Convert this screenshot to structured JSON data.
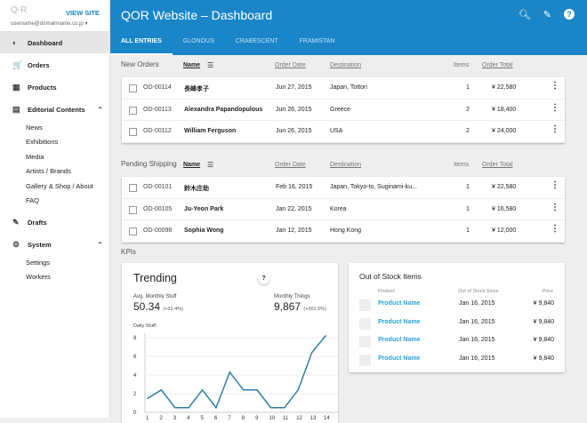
{
  "sidebar": {
    "logo": "Q·R",
    "view_site": "VIEW SITE",
    "user": "username@domainname.co.jp",
    "items": [
      {
        "label": "Dashboard",
        "icon": "dashboard-icon"
      },
      {
        "label": "Orders",
        "icon": "cart-icon"
      },
      {
        "label": "Products",
        "icon": "grid-icon"
      },
      {
        "label": "Editorial Contents",
        "icon": "book-icon"
      },
      {
        "label": "Drafts",
        "icon": "pencil-icon"
      },
      {
        "label": "System",
        "icon": "gear-icon"
      }
    ],
    "editorial": [
      "News",
      "Exhibitions",
      "Media",
      "Artists / Brands",
      "Gallery & Shop / About",
      "FAQ"
    ],
    "system": [
      "Settings",
      "Workers"
    ]
  },
  "header": {
    "title": "QOR Website – Dashboard",
    "tabs": [
      "ALL ENTRIES",
      "GLONOUS",
      "CRABESCENT",
      "FRAMISTAN"
    ],
    "accent": "#1a86c8"
  },
  "columns": {
    "name": "Name",
    "date": "Order Date",
    "dest": "Destination",
    "items": "Items",
    "total": "Order Total"
  },
  "new_orders": {
    "title": "New Orders",
    "rows": [
      {
        "id": "OD-00114",
        "name": "長峰孝子",
        "date": "Jun 27, 2015",
        "dest": "Japan, Tottori",
        "items": "1",
        "total": "¥ 22,580"
      },
      {
        "id": "OD-00113",
        "name": "Alexandra Papandopulous",
        "date": "Jun 26, 2015",
        "dest": "Greece",
        "items": "2",
        "total": "¥ 18,400"
      },
      {
        "id": "OD-00112",
        "name": "William Ferguson",
        "date": "Jun 26, 2015",
        "dest": "USA",
        "items": "2",
        "total": "¥ 24,000"
      }
    ]
  },
  "pending": {
    "title": "Pending Shipping",
    "rows": [
      {
        "id": "OD-00101",
        "name": "鈴木庄助",
        "date": "Feb 16, 2015",
        "dest": "Japan, Tokyo-to, Suginami-ku...",
        "items": "1",
        "total": "¥ 22,580"
      },
      {
        "id": "OD-00105",
        "name": "Ju-Yeon Park",
        "date": "Jan 22, 2015",
        "dest": "Korea",
        "items": "1",
        "total": "¥ 16,580"
      },
      {
        "id": "OD-00098",
        "name": "Sophia Wong",
        "date": "Jan 12, 2015",
        "dest": "Hong Kong",
        "items": "1",
        "total": "¥ 12,000"
      }
    ]
  },
  "kpis": {
    "title": "KPIs",
    "trending": {
      "title": "Trending",
      "help": "?",
      "avg_label": "Avg. Monthly Stuff",
      "avg_value": "50.34",
      "avg_change": "(+32.4%)",
      "things_label": "Monthly Things",
      "things_value": "9,867",
      "things_change": "(+301.5%)"
    }
  },
  "chart_data": {
    "type": "line",
    "title": "Daily Stuff:",
    "x": [
      1,
      2,
      3,
      4,
      5,
      6,
      7,
      8,
      9,
      10,
      11,
      12,
      13,
      14
    ],
    "values": [
      1.5,
      2.4,
      0.5,
      0.5,
      2.4,
      0.5,
      4.3,
      2.4,
      2.4,
      0.5,
      0.5,
      2.4,
      6.4,
      8.2
    ],
    "ylim": [
      0,
      8
    ],
    "yticks": [
      0,
      2,
      4,
      6,
      8
    ],
    "grid": true,
    "color": "#2f7ea8"
  },
  "out_of_stock": {
    "title": "Out of Stock Items",
    "headers": [
      "Product",
      "Out of Stock Since",
      "Price"
    ],
    "rows": [
      {
        "name": "Product Name",
        "since": "Jan 16, 2015",
        "price": "¥ 9,840"
      },
      {
        "name": "Product Name",
        "since": "Jan 16, 2015",
        "price": "¥ 9,840"
      },
      {
        "name": "Product Name",
        "since": "Jan 16, 2015",
        "price": "¥ 9,840"
      },
      {
        "name": "Product Name",
        "since": "Jan 16, 2015",
        "price": "¥ 9,840"
      }
    ]
  }
}
